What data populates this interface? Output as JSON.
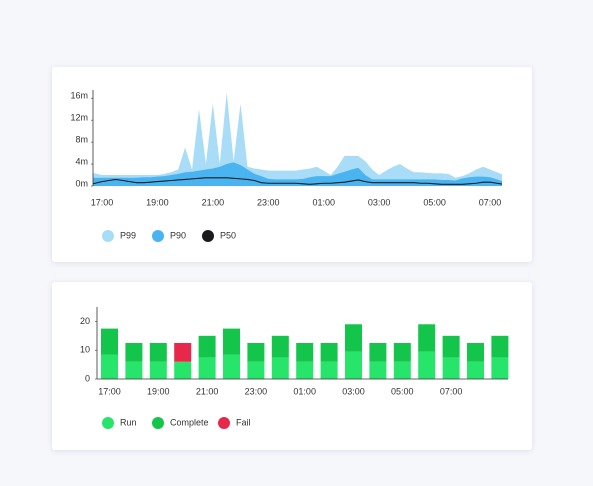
{
  "chart_data": [
    {
      "type": "area",
      "categories": [
        null,
        null,
        "17:00",
        null,
        null,
        null,
        null,
        null,
        null,
        null,
        "19:00",
        null,
        null,
        null,
        null,
        null,
        null,
        null,
        "21:00",
        null,
        null,
        null,
        null,
        null,
        null,
        null,
        "23:00",
        null,
        null,
        null,
        null,
        null,
        null,
        null,
        "01:00",
        null,
        null,
        null,
        null,
        null,
        null,
        null,
        "03:00",
        null,
        null,
        null,
        null,
        null,
        null,
        null,
        "05:00",
        null,
        null,
        null,
        null,
        null,
        null,
        null,
        "07:00",
        null,
        null
      ],
      "series": [
        {
          "name": "P99",
          "color": "#a9dcf7",
          "values": [
            2.5,
            2.3,
            2,
            2,
            2,
            2,
            2,
            2,
            2,
            2,
            2,
            2.2,
            2.5,
            3,
            7,
            3,
            14,
            4,
            15,
            4,
            17,
            4.5,
            15,
            3.5,
            3.2,
            3,
            2.8,
            2.8,
            2.8,
            2.8,
            2.8,
            3,
            3.2,
            3.5,
            2.8,
            2,
            3.5,
            5.5,
            5.5,
            5.5,
            4.5,
            3,
            2,
            2.8,
            3.5,
            4,
            3.2,
            2.5,
            2.5,
            2.4,
            2.3,
            2.3,
            2.2,
            1.5,
            1.8,
            2.3,
            3,
            3.5,
            3,
            2.5,
            2
          ]
        },
        {
          "name": "P90",
          "color": "#4ab4f0",
          "values": [
            1.5,
            1.5,
            1.5,
            1.5,
            1.5,
            1.5,
            1.5,
            1.5,
            1.6,
            1.6,
            1.7,
            1.8,
            2,
            2.2,
            2.5,
            2.6,
            2.8,
            3,
            3.2,
            3.5,
            4,
            4.3,
            3.8,
            3,
            2.2,
            1.8,
            1.3,
            1.2,
            1.2,
            1.2,
            1.2,
            1.3,
            1.6,
            1.8,
            1.8,
            1.8,
            2.2,
            2.6,
            3,
            3.3,
            2,
            1.2,
            1.2,
            1.2,
            1.2,
            1.2,
            1.2,
            1.2,
            1.2,
            1.2,
            1.2,
            1.1,
            1.1,
            1,
            1.4,
            1.6,
            1.7,
            1.7,
            1.6,
            1.2,
            0.8
          ]
        },
        {
          "name": "P50",
          "color": "#1b1b1f",
          "values": [
            0.2,
            0.5,
            0.8,
            1,
            1.2,
            1,
            0.8,
            0.6,
            0.6,
            0.7,
            0.8,
            0.9,
            1,
            1.1,
            1.2,
            1.3,
            1.4,
            1.5,
            1.5,
            1.5,
            1.5,
            1.4,
            1.3,
            1.2,
            1,
            0.6,
            0.5,
            0.5,
            0.5,
            0.5,
            0.5,
            0.4,
            0.3,
            0.4,
            0.5,
            0.5,
            0.6,
            0.7,
            0.9,
            1.1,
            0.8,
            0.6,
            0.6,
            0.6,
            0.6,
            0.6,
            0.6,
            0.6,
            0.5,
            0.5,
            0.4,
            0.3,
            0.3,
            0.3,
            0.3,
            0.4,
            0.5,
            0.7,
            0.7,
            0.5,
            0.3
          ]
        }
      ],
      "ylim": [
        0,
        17.5
      ],
      "yticks": [
        {
          "value": 0,
          "label": "0m"
        },
        {
          "value": 4,
          "label": "4m"
        },
        {
          "value": 8,
          "label": "8m"
        },
        {
          "value": 12,
          "label": "12m"
        },
        {
          "value": 16,
          "label": "16m"
        }
      ]
    },
    {
      "type": "bar",
      "stacked": true,
      "categories": [
        "17:00",
        null,
        "19:00",
        null,
        "21:00",
        null,
        "23:00",
        null,
        "01:00",
        null,
        "03:00",
        null,
        "05:00",
        null,
        "07:00",
        null,
        null
      ],
      "series": [
        {
          "name": "Run",
          "color": "#27e46b",
          "values": [
            8.5,
            6,
            6,
            6,
            7.5,
            8.5,
            6,
            7.5,
            6,
            6,
            9.5,
            6,
            6,
            9.5,
            7.5,
            6,
            7.5
          ]
        },
        {
          "name": "Complete",
          "color": "#13c54a",
          "values": [
            9,
            6.5,
            6.5,
            0,
            7.5,
            9,
            6.5,
            7.5,
            6.5,
            6.5,
            9.5,
            6.5,
            6.5,
            9.5,
            7.5,
            6.5,
            7.5
          ]
        },
        {
          "name": "Fail",
          "color": "#e6294a",
          "values": [
            0,
            0,
            0,
            6.5,
            0,
            0,
            0,
            0,
            0,
            0,
            0,
            0,
            0,
            0,
            0,
            0,
            0
          ]
        }
      ],
      "ylim": [
        0,
        25
      ],
      "yticks": [
        0,
        10,
        20
      ]
    }
  ]
}
